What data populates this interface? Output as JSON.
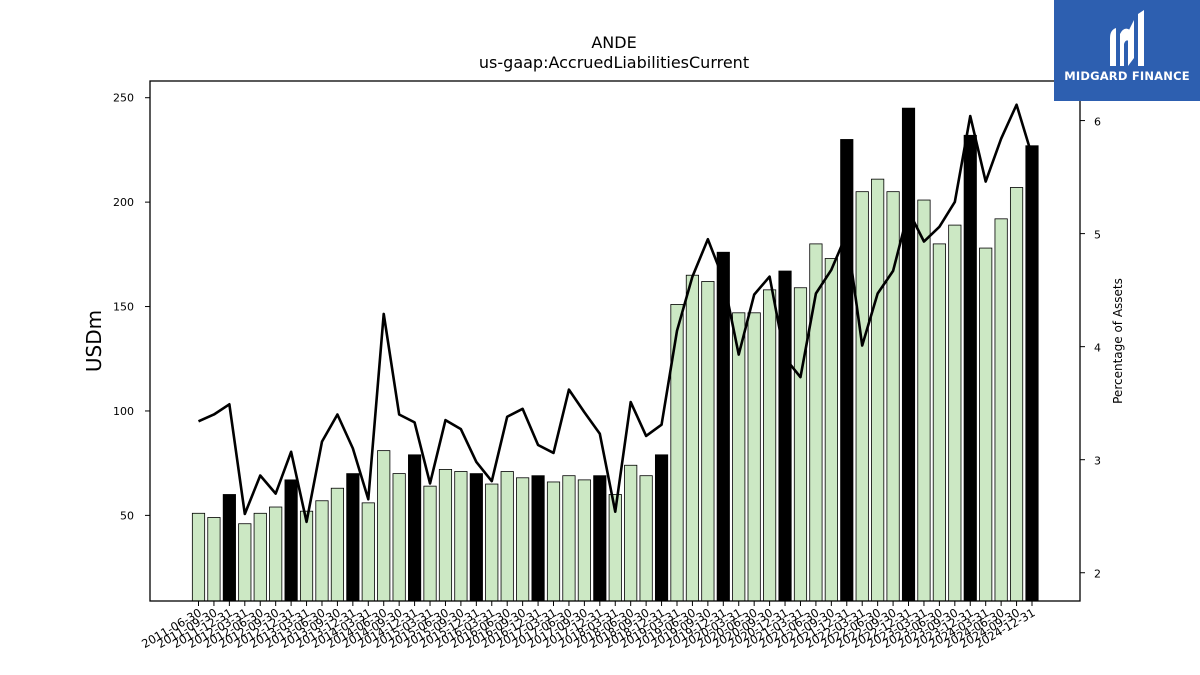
{
  "chart_data": {
    "type": "bar",
    "title": "ANDE",
    "subtitle": "us-gaap:AccruedLiabilitiesCurrent",
    "ylabel": "USDm",
    "y2label": "Percentage of Assets",
    "ylim": [
      9,
      258
    ],
    "y2lim": [
      1.75,
      6.35
    ],
    "yticks": [
      50,
      100,
      150,
      200,
      250
    ],
    "y2ticks": [
      2,
      3,
      4,
      5,
      6
    ],
    "colors": {
      "bar_light": "#cce8c4",
      "bar_dark": "#000000",
      "line": "#000000"
    },
    "categories": [
      "2011-06-30",
      "2011-09-30",
      "2011-12-31",
      "2012-03-31",
      "2012-06-30",
      "2012-09-30",
      "2012-12-31",
      "2013-03-31",
      "2013-06-30",
      "2013-09-30",
      "2013-12-31",
      "2014-03-31",
      "2014-06-30",
      "2014-09-30",
      "2014-12-31",
      "2015-03-31",
      "2015-06-30",
      "2015-09-30",
      "2015-12-31",
      "2016-03-31",
      "2016-06-30",
      "2016-09-30",
      "2016-12-31",
      "2017-03-31",
      "2017-06-30",
      "2017-09-30",
      "2017-12-31",
      "2018-03-31",
      "2018-06-30",
      "2018-09-30",
      "2018-12-31",
      "2019-03-31",
      "2019-06-30",
      "2019-09-30",
      "2019-12-31",
      "2020-03-31",
      "2020-06-30",
      "2020-09-30",
      "2020-12-31",
      "2021-03-31",
      "2021-06-30",
      "2021-09-30",
      "2021-12-31",
      "2022-03-31",
      "2022-06-30",
      "2022-09-30",
      "2022-12-31",
      "2023-03-31",
      "2023-06-30",
      "2023-09-30",
      "2023-12-31",
      "2024-03-31",
      "2024-06-30",
      "2024-09-30",
      "2024-12-31"
    ],
    "xtick_labels": [
      "2011-06-30",
      "2011-09-30",
      "2011-12-31",
      "2012-03-31",
      "2012-06-30",
      "2012-09-30",
      "2012-12-31",
      "2013-03-31",
      "2013-06-30",
      "2013-09-30",
      "2013-12-31",
      "2014-03-31",
      "2014-06-30",
      "2014-09-30",
      "2014-12-31",
      "2015-03-31",
      "2015-06-30",
      "2015-09-30",
      "2015-12-31",
      "2016-03-31",
      "2016-06-30",
      "2016-09-30",
      "2016-12-31",
      "2017-03-31",
      "2017-06-30",
      "2017-09-30",
      "2017-12-31",
      "2018-03-31",
      "2018-06-30",
      "2018-09-30",
      "2018-12-31",
      "2019-03-31",
      "2019-06-30",
      "2019-09-30",
      "2019-12-31",
      "2020-03-31",
      "2020-06-30",
      "2020-09-30",
      "2020-12-31",
      "2021-03-31",
      "2021-06-30",
      "2021-09-30",
      "2021-12-31",
      "2022-03-31",
      "2022-06-30",
      "2022-09-30",
      "2022-12-31",
      "2023-03-31",
      "2023-06-30",
      "2023-09-30",
      "2023-12-31",
      "2024-03-31",
      "2024-06-30",
      "2024-09-30",
      "2024-12-31"
    ],
    "series": [
      {
        "name": "USDm",
        "values": [
          51,
          49,
          60,
          46,
          51,
          54,
          67,
          52,
          57,
          63,
          70,
          56,
          81,
          70,
          79,
          64,
          72,
          71,
          70,
          65,
          71,
          68,
          69,
          66,
          69,
          67,
          69,
          60,
          74,
          69,
          79,
          151,
          165,
          162,
          176,
          147,
          147,
          158,
          167,
          159,
          180,
          173,
          230,
          205,
          211,
          205,
          245,
          201,
          180,
          189,
          232,
          178,
          192,
          207,
          227
        ],
        "highlight": [
          false,
          false,
          true,
          false,
          false,
          false,
          true,
          false,
          false,
          false,
          true,
          false,
          false,
          false,
          true,
          false,
          false,
          false,
          true,
          false,
          false,
          false,
          true,
          false,
          false,
          false,
          true,
          false,
          false,
          false,
          true,
          false,
          false,
          false,
          true,
          false,
          false,
          false,
          true,
          false,
          false,
          false,
          true,
          false,
          false,
          false,
          true,
          false,
          false,
          false,
          true,
          false,
          false,
          false,
          true
        ]
      },
      {
        "name": "Percentage of Assets",
        "axis": "right",
        "values": [
          3.34,
          3.4,
          3.49,
          2.52,
          2.86,
          2.7,
          3.07,
          2.45,
          3.16,
          3.4,
          3.1,
          2.65,
          4.29,
          3.4,
          3.33,
          2.79,
          3.35,
          3.27,
          2.98,
          2.81,
          3.38,
          3.45,
          3.13,
          3.06,
          3.62,
          3.42,
          3.23,
          2.54,
          3.51,
          3.21,
          3.31,
          4.14,
          4.62,
          4.95,
          4.6,
          3.93,
          4.46,
          4.62,
          3.9,
          3.73,
          4.47,
          4.68,
          5.0,
          4.01,
          4.47,
          4.67,
          5.2,
          4.93,
          5.06,
          5.28,
          6.04,
          5.46,
          5.84,
          6.14,
          5.69
        ]
      }
    ]
  },
  "logo": {
    "text": "MIDGARD FINANCE",
    "icon": "midgard-m-logo-icon"
  }
}
